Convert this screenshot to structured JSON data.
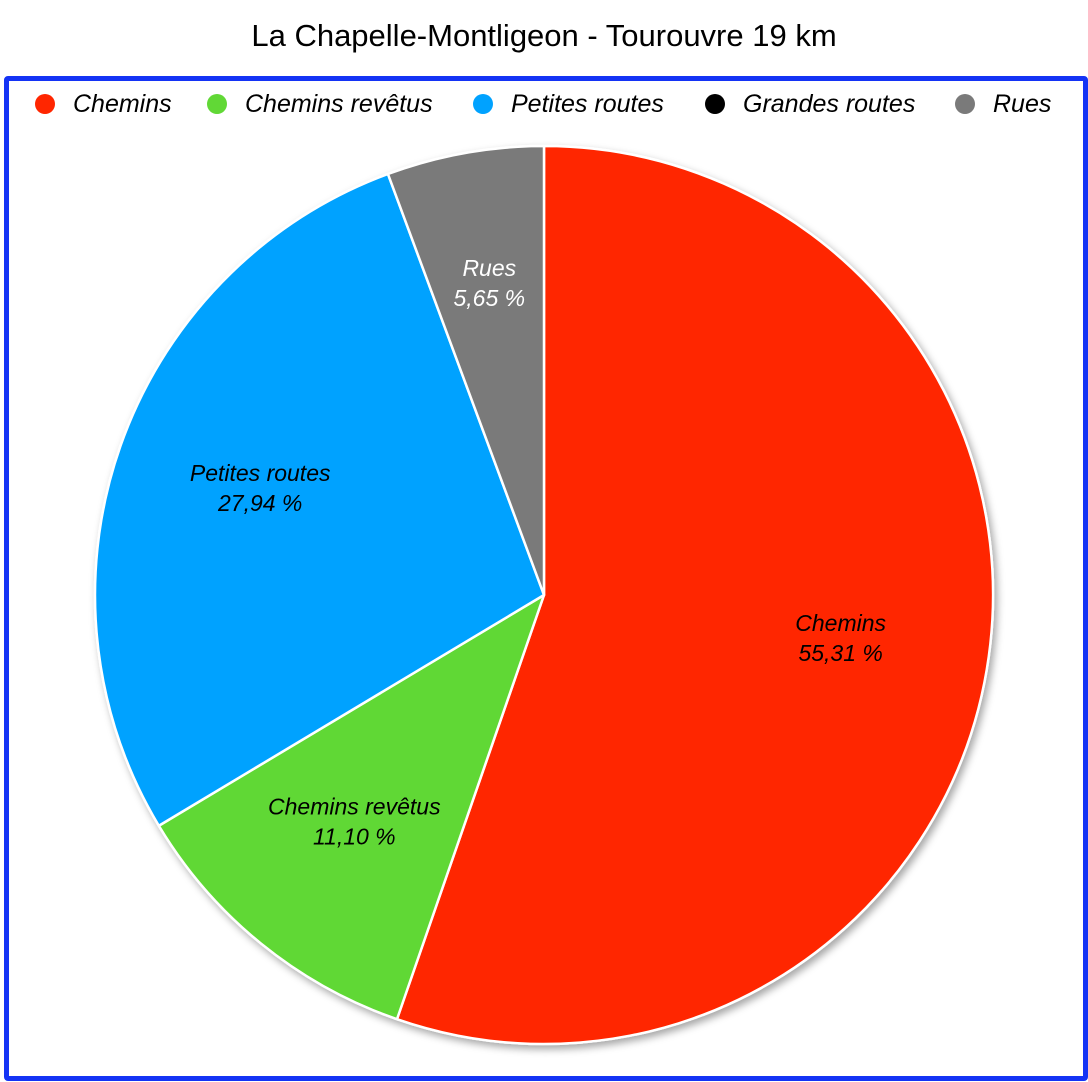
{
  "chart_data": {
    "type": "pie",
    "title": "La Chapelle-Montligeon - Tourouvre 19 km",
    "legend_position": "top",
    "categories": [
      "Chemins",
      "Chemins revêtus",
      "Petites routes",
      "Grandes routes",
      "Rues"
    ],
    "values": [
      55.31,
      11.1,
      27.94,
      0,
      5.65
    ],
    "value_labels": [
      "55,31 %",
      "11,10 %",
      "27,94 %",
      "",
      "5,65 %"
    ],
    "colors": [
      "#ff2600",
      "#61d836",
      "#00a2ff",
      "#000000",
      "#7a7a7a"
    ],
    "frame_color": "#1433f5"
  }
}
